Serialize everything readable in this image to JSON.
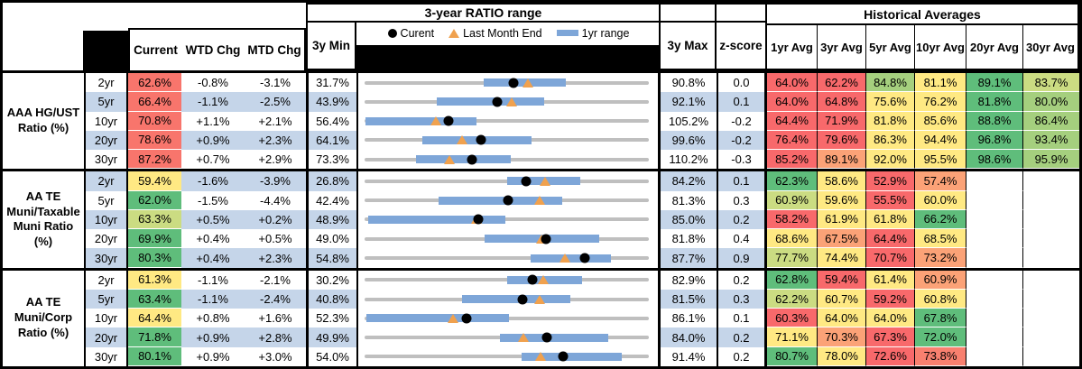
{
  "table": {
    "header": {
      "chart_title": "3-year RATIO range",
      "historical_title": "Historical Averages",
      "legend": {
        "current": "Curent",
        "last_month": "Last Month End",
        "range": "1yr range"
      },
      "columns": {
        "current": "Current",
        "wtd": "WTD Chg",
        "mtd": "MTD Chg",
        "min": "3y Min",
        "max": "3y Max",
        "zscore": "z-score",
        "avgs": [
          "1yr Avg",
          "3yr Avg",
          "5yr Avg",
          "10yr Avg",
          "20yr Avg",
          "30yr Avg"
        ]
      }
    },
    "colors": {
      "red": "#F8696B",
      "salmon": "#F8806F",
      "orange": "#FBA277",
      "yellow": "#FFE983",
      "ygreen": "#CBDC82",
      "lgreen": "#A5CF7E",
      "green": "#5FBD7B",
      "curRed": "#F8756C",
      "white": "#FFFFFF",
      "rowBlue": "#C5D5E9",
      "barBlue": "#7EA6D8",
      "track": "#BFBFBF",
      "tri": "#F0A14E"
    },
    "groups": [
      {
        "label": "AAA HG/UST Ratio (%)",
        "rows": [
          {
            "tenor": "2yr",
            "current": "62.6%",
            "cc": "curRed",
            "wtd": "-0.8%",
            "mtd": "-3.1%",
            "min": "31.7%",
            "max": "90.8%",
            "z": "0.0",
            "avgs": [
              {
                "t": "64.0%",
                "c": "red"
              },
              {
                "t": "62.2%",
                "c": "red"
              },
              {
                "t": "84.8%",
                "c": "lgreen"
              },
              {
                "t": "81.1%",
                "c": "yellow"
              },
              {
                "t": "89.1%",
                "c": "green"
              },
              {
                "t": "83.7%",
                "c": "ygreen"
              }
            ]
          },
          {
            "tenor": "5yr",
            "current": "66.4%",
            "cc": "curRed",
            "wtd": "-1.1%",
            "mtd": "-2.5%",
            "min": "43.9%",
            "max": "92.1%",
            "z": "0.1",
            "avgs": [
              {
                "t": "64.0%",
                "c": "red"
              },
              {
                "t": "64.8%",
                "c": "red"
              },
              {
                "t": "75.6%",
                "c": "yellow"
              },
              {
                "t": "76.2%",
                "c": "yellow"
              },
              {
                "t": "81.8%",
                "c": "green"
              },
              {
                "t": "80.0%",
                "c": "lgreen"
              }
            ]
          },
          {
            "tenor": "10yr",
            "current": "70.8%",
            "cc": "curRed",
            "wtd": "+1.1%",
            "mtd": "+2.1%",
            "min": "56.4%",
            "max": "105.2%",
            "z": "-0.2",
            "avgs": [
              {
                "t": "64.4%",
                "c": "red"
              },
              {
                "t": "71.9%",
                "c": "red"
              },
              {
                "t": "81.8%",
                "c": "yellow"
              },
              {
                "t": "85.6%",
                "c": "yellow"
              },
              {
                "t": "88.8%",
                "c": "green"
              },
              {
                "t": "86.4%",
                "c": "lgreen"
              }
            ]
          },
          {
            "tenor": "20yr",
            "current": "78.6%",
            "cc": "curRed",
            "wtd": "+0.9%",
            "mtd": "+2.3%",
            "min": "64.1%",
            "max": "99.6%",
            "z": "-0.2",
            "avgs": [
              {
                "t": "76.4%",
                "c": "red"
              },
              {
                "t": "79.6%",
                "c": "red"
              },
              {
                "t": "86.3%",
                "c": "yellow"
              },
              {
                "t": "94.4%",
                "c": "yellow"
              },
              {
                "t": "96.8%",
                "c": "green"
              },
              {
                "t": "93.4%",
                "c": "lgreen"
              }
            ]
          },
          {
            "tenor": "30yr",
            "current": "87.2%",
            "cc": "curRed",
            "wtd": "+0.7%",
            "mtd": "+2.9%",
            "min": "73.3%",
            "max": "110.2%",
            "z": "-0.3",
            "avgs": [
              {
                "t": "85.2%",
                "c": "red"
              },
              {
                "t": "89.1%",
                "c": "orange"
              },
              {
                "t": "92.0%",
                "c": "yellow"
              },
              {
                "t": "95.5%",
                "c": "yellow"
              },
              {
                "t": "98.6%",
                "c": "green"
              },
              {
                "t": "95.9%",
                "c": "lgreen"
              }
            ]
          }
        ]
      },
      {
        "label": "AA TE Muni/Taxable Muni Ratio (%)",
        "rows": [
          {
            "tenor": "2yr",
            "current": "59.4%",
            "cc": "yellow",
            "wtd": "-1.6%",
            "mtd": "-3.9%",
            "min": "26.8%",
            "max": "84.2%",
            "z": "0.1",
            "avgs": [
              {
                "t": "62.3%",
                "c": "green"
              },
              {
                "t": "58.6%",
                "c": "yellow"
              },
              {
                "t": "52.9%",
                "c": "red"
              },
              {
                "t": "57.4%",
                "c": "orange"
              },
              {
                "t": "",
                "c": "white"
              },
              {
                "t": "",
                "c": "white"
              }
            ]
          },
          {
            "tenor": "5yr",
            "current": "62.0%",
            "cc": "green",
            "wtd": "-1.5%",
            "mtd": "-4.4%",
            "min": "42.4%",
            "max": "81.3%",
            "z": "0.3",
            "avgs": [
              {
                "t": "60.9%",
                "c": "ygreen"
              },
              {
                "t": "59.6%",
                "c": "yellow"
              },
              {
                "t": "55.5%",
                "c": "red"
              },
              {
                "t": "60.0%",
                "c": "yellow"
              },
              {
                "t": "",
                "c": "white"
              },
              {
                "t": "",
                "c": "white"
              }
            ]
          },
          {
            "tenor": "10yr",
            "current": "63.3%",
            "cc": "ygreen",
            "wtd": "+0.5%",
            "mtd": "+0.2%",
            "min": "48.9%",
            "max": "85.0%",
            "z": "0.2",
            "avgs": [
              {
                "t": "58.2%",
                "c": "red"
              },
              {
                "t": "61.9%",
                "c": "yellow"
              },
              {
                "t": "61.8%",
                "c": "yellow"
              },
              {
                "t": "66.2%",
                "c": "green"
              },
              {
                "t": "",
                "c": "white"
              },
              {
                "t": "",
                "c": "white"
              }
            ]
          },
          {
            "tenor": "20yr",
            "current": "69.9%",
            "cc": "green",
            "wtd": "+0.4%",
            "mtd": "+0.5%",
            "min": "49.0%",
            "max": "81.8%",
            "z": "0.4",
            "avgs": [
              {
                "t": "68.6%",
                "c": "yellow"
              },
              {
                "t": "67.5%",
                "c": "orange"
              },
              {
                "t": "64.4%",
                "c": "red"
              },
              {
                "t": "68.5%",
                "c": "yellow"
              },
              {
                "t": "",
                "c": "white"
              },
              {
                "t": "",
                "c": "white"
              }
            ]
          },
          {
            "tenor": "30yr",
            "current": "80.3%",
            "cc": "green",
            "wtd": "+0.4%",
            "mtd": "+2.3%",
            "min": "54.8%",
            "max": "87.7%",
            "z": "0.9",
            "avgs": [
              {
                "t": "77.7%",
                "c": "ygreen"
              },
              {
                "t": "74.4%",
                "c": "yellow"
              },
              {
                "t": "70.7%",
                "c": "red"
              },
              {
                "t": "73.2%",
                "c": "orange"
              },
              {
                "t": "",
                "c": "white"
              },
              {
                "t": "",
                "c": "white"
              }
            ]
          }
        ]
      },
      {
        "label": "AA TE Muni/Corp Ratio (%)",
        "rows": [
          {
            "tenor": "2yr",
            "current": "61.3%",
            "cc": "yellow",
            "wtd": "-1.1%",
            "mtd": "-2.1%",
            "min": "30.2%",
            "max": "82.9%",
            "z": "0.2",
            "avgs": [
              {
                "t": "62.8%",
                "c": "green"
              },
              {
                "t": "59.4%",
                "c": "red"
              },
              {
                "t": "61.4%",
                "c": "yellow"
              },
              {
                "t": "60.9%",
                "c": "orange"
              },
              {
                "t": "",
                "c": "white"
              },
              {
                "t": "",
                "c": "white"
              }
            ]
          },
          {
            "tenor": "5yr",
            "current": "63.4%",
            "cc": "green",
            "wtd": "-1.1%",
            "mtd": "-2.4%",
            "min": "40.8%",
            "max": "81.5%",
            "z": "0.3",
            "avgs": [
              {
                "t": "62.2%",
                "c": "ygreen"
              },
              {
                "t": "60.7%",
                "c": "yellow"
              },
              {
                "t": "59.2%",
                "c": "red"
              },
              {
                "t": "60.8%",
                "c": "yellow"
              },
              {
                "t": "",
                "c": "white"
              },
              {
                "t": "",
                "c": "white"
              }
            ]
          },
          {
            "tenor": "10yr",
            "current": "64.4%",
            "cc": "yellow",
            "wtd": "+0.8%",
            "mtd": "+1.6%",
            "min": "52.3%",
            "max": "86.1%",
            "z": "0.1",
            "avgs": [
              {
                "t": "60.3%",
                "c": "red"
              },
              {
                "t": "64.0%",
                "c": "yellow"
              },
              {
                "t": "64.0%",
                "c": "yellow"
              },
              {
                "t": "67.8%",
                "c": "green"
              },
              {
                "t": "",
                "c": "white"
              },
              {
                "t": "",
                "c": "white"
              }
            ]
          },
          {
            "tenor": "20yr",
            "current": "71.8%",
            "cc": "green",
            "wtd": "+0.9%",
            "mtd": "+2.8%",
            "min": "49.9%",
            "max": "84.0%",
            "z": "0.2",
            "avgs": [
              {
                "t": "71.1%",
                "c": "yellow"
              },
              {
                "t": "70.3%",
                "c": "orange"
              },
              {
                "t": "67.3%",
                "c": "red"
              },
              {
                "t": "72.0%",
                "c": "green"
              },
              {
                "t": "",
                "c": "white"
              },
              {
                "t": "",
                "c": "white"
              }
            ]
          },
          {
            "tenor": "30yr",
            "current": "80.1%",
            "cc": "green",
            "wtd": "+0.9%",
            "mtd": "+3.0%",
            "min": "54.0%",
            "max": "91.4%",
            "z": "0.2",
            "avgs": [
              {
                "t": "80.7%",
                "c": "green"
              },
              {
                "t": "78.0%",
                "c": "yellow"
              },
              {
                "t": "72.6%",
                "c": "red"
              },
              {
                "t": "73.8%",
                "c": "salmon"
              },
              {
                "t": "",
                "c": "white"
              },
              {
                "t": "",
                "c": "white"
              }
            ]
          }
        ]
      }
    ]
  },
  "chart_data": [
    {
      "type": "range",
      "title": "3-year RATIO range",
      "group": "AAA HG/UST Ratio (%)",
      "categories": [
        "2yr",
        "5yr",
        "10yr",
        "20yr",
        "30yr"
      ],
      "legend": [
        "Curent",
        "Last Month End",
        "1yr range"
      ],
      "series": [
        {
          "name": "3y Min",
          "values": [
            31.7,
            43.9,
            56.4,
            64.1,
            73.3
          ]
        },
        {
          "name": "3y Max",
          "values": [
            90.8,
            92.1,
            105.2,
            99.6,
            110.2
          ]
        },
        {
          "name": "1yr range low",
          "values": [
            56.5,
            56.2,
            56.6,
            71.3,
            80.0
          ]
        },
        {
          "name": "1yr range high",
          "values": [
            73.5,
            74.3,
            75.6,
            84.9,
            92.3
          ]
        },
        {
          "name": "Current",
          "values": [
            62.6,
            66.4,
            70.8,
            78.6,
            87.2
          ]
        },
        {
          "name": "Last Month End",
          "values": [
            65.7,
            68.9,
            68.7,
            76.3,
            84.3
          ]
        }
      ]
    },
    {
      "type": "range",
      "title": "3-year RATIO range",
      "group": "AA TE Muni/Taxable Muni Ratio (%)",
      "categories": [
        "2yr",
        "5yr",
        "10yr",
        "20yr",
        "30yr"
      ],
      "legend": [
        "Curent",
        "Last Month End",
        "1yr range"
      ],
      "series": [
        {
          "name": "3y Min",
          "values": [
            26.8,
            42.4,
            48.9,
            49.0,
            54.8
          ]
        },
        {
          "name": "3y Max",
          "values": [
            84.2,
            81.3,
            85.0,
            81.8,
            87.7
          ]
        },
        {
          "name": "1yr range low",
          "values": [
            55.5,
            52.5,
            49.4,
            62.9,
            74.0
          ]
        },
        {
          "name": "1yr range high",
          "values": [
            70.4,
            69.4,
            66.8,
            76.1,
            83.3
          ]
        },
        {
          "name": "Current",
          "values": [
            59.4,
            62.0,
            63.3,
            69.9,
            80.3
          ]
        },
        {
          "name": "Last Month End",
          "values": [
            63.3,
            66.4,
            63.1,
            69.4,
            78.0
          ]
        }
      ]
    },
    {
      "type": "range",
      "title": "3-year RATIO range",
      "group": "AA TE Muni/Corp Ratio (%)",
      "categories": [
        "2yr",
        "5yr",
        "10yr",
        "20yr",
        "30yr"
      ],
      "legend": [
        "Curent",
        "Last Month End",
        "1yr range"
      ],
      "series": [
        {
          "name": "3y Min",
          "values": [
            30.2,
            40.8,
            52.3,
            49.9,
            54.0
          ]
        },
        {
          "name": "3y Max",
          "values": [
            82.9,
            81.5,
            86.1,
            84.0,
            91.4
          ]
        },
        {
          "name": "1yr range low",
          "values": [
            56.6,
            54.8,
            52.5,
            66.1,
            74.6
          ]
        },
        {
          "name": "1yr range high",
          "values": [
            70.5,
            70.3,
            69.5,
            79.1,
            87.8
          ]
        },
        {
          "name": "Current",
          "values": [
            61.3,
            63.4,
            64.4,
            71.8,
            80.1
          ]
        },
        {
          "name": "Last Month End",
          "values": [
            63.4,
            65.8,
            62.8,
            69.0,
            77.1
          ]
        }
      ]
    }
  ]
}
